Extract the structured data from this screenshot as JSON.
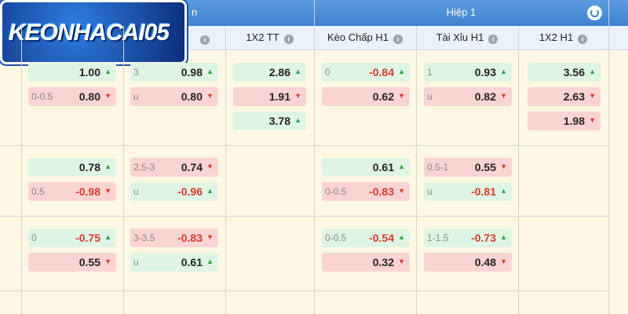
{
  "logo": "KEONHACAI05",
  "header": {
    "section_left": "n",
    "section": "Hiệp 1",
    "columns": [
      "1X2 TT",
      "Kèo Chấp H1",
      "Tài Xỉu H1",
      "1X2 H1"
    ]
  },
  "rows": [
    [
      [
        {
          "value": "1.00",
          "dir": "up"
        },
        {
          "line": "0-0.5",
          "value": "0.80",
          "dir": "down"
        }
      ],
      [
        {
          "line": "3",
          "value": "0.98",
          "dir": "up"
        },
        {
          "line": "u",
          "value": "0.80",
          "dir": "down"
        }
      ],
      [
        {
          "value": "2.86",
          "dir": "up"
        },
        {
          "value": "1.91",
          "dir": "down"
        },
        {
          "value": "3.78",
          "dir": "up"
        }
      ],
      [
        {
          "line": "0",
          "value": "-0.84",
          "dir": "up"
        },
        {
          "value": "0.62",
          "dir": "down"
        }
      ],
      [
        {
          "line": "1",
          "value": "0.93",
          "dir": "up"
        },
        {
          "line": "u",
          "value": "0.82",
          "dir": "down"
        }
      ],
      [
        {
          "value": "3.56",
          "dir": "up"
        },
        {
          "value": "2.63",
          "dir": "down"
        },
        {
          "value": "1.98",
          "dir": "down"
        }
      ]
    ],
    [
      [
        {
          "value": "0.78",
          "dir": "up"
        },
        {
          "line": "0.5",
          "value": "-0.98",
          "dir": "down"
        }
      ],
      [
        {
          "line": "2.5-3",
          "value": "0.74",
          "dir": "down"
        },
        {
          "line": "u",
          "value": "-0.96",
          "dir": "up"
        }
      ],
      [],
      [
        {
          "value": "0.61",
          "dir": "up"
        },
        {
          "line": "0-0.5",
          "value": "-0.83",
          "dir": "down"
        }
      ],
      [
        {
          "line": "0.5-1",
          "value": "0.55",
          "dir": "down"
        },
        {
          "line": "u",
          "value": "-0.81",
          "dir": "up"
        }
      ],
      []
    ],
    [
      [
        {
          "line": "0",
          "value": "-0.75",
          "dir": "up"
        },
        {
          "value": "0.55",
          "dir": "down"
        }
      ],
      [
        {
          "line": "3-3.5",
          "value": "-0.83",
          "dir": "down"
        },
        {
          "line": "u",
          "value": "0.61",
          "dir": "up"
        }
      ],
      [],
      [
        {
          "line": "0-0.5",
          "value": "-0.54",
          "dir": "up"
        },
        {
          "value": "0.32",
          "dir": "down"
        }
      ],
      [
        {
          "line": "1-1.5",
          "value": "-0.73",
          "dir": "up"
        },
        {
          "value": "0.48",
          "dir": "down"
        }
      ],
      []
    ]
  ]
}
